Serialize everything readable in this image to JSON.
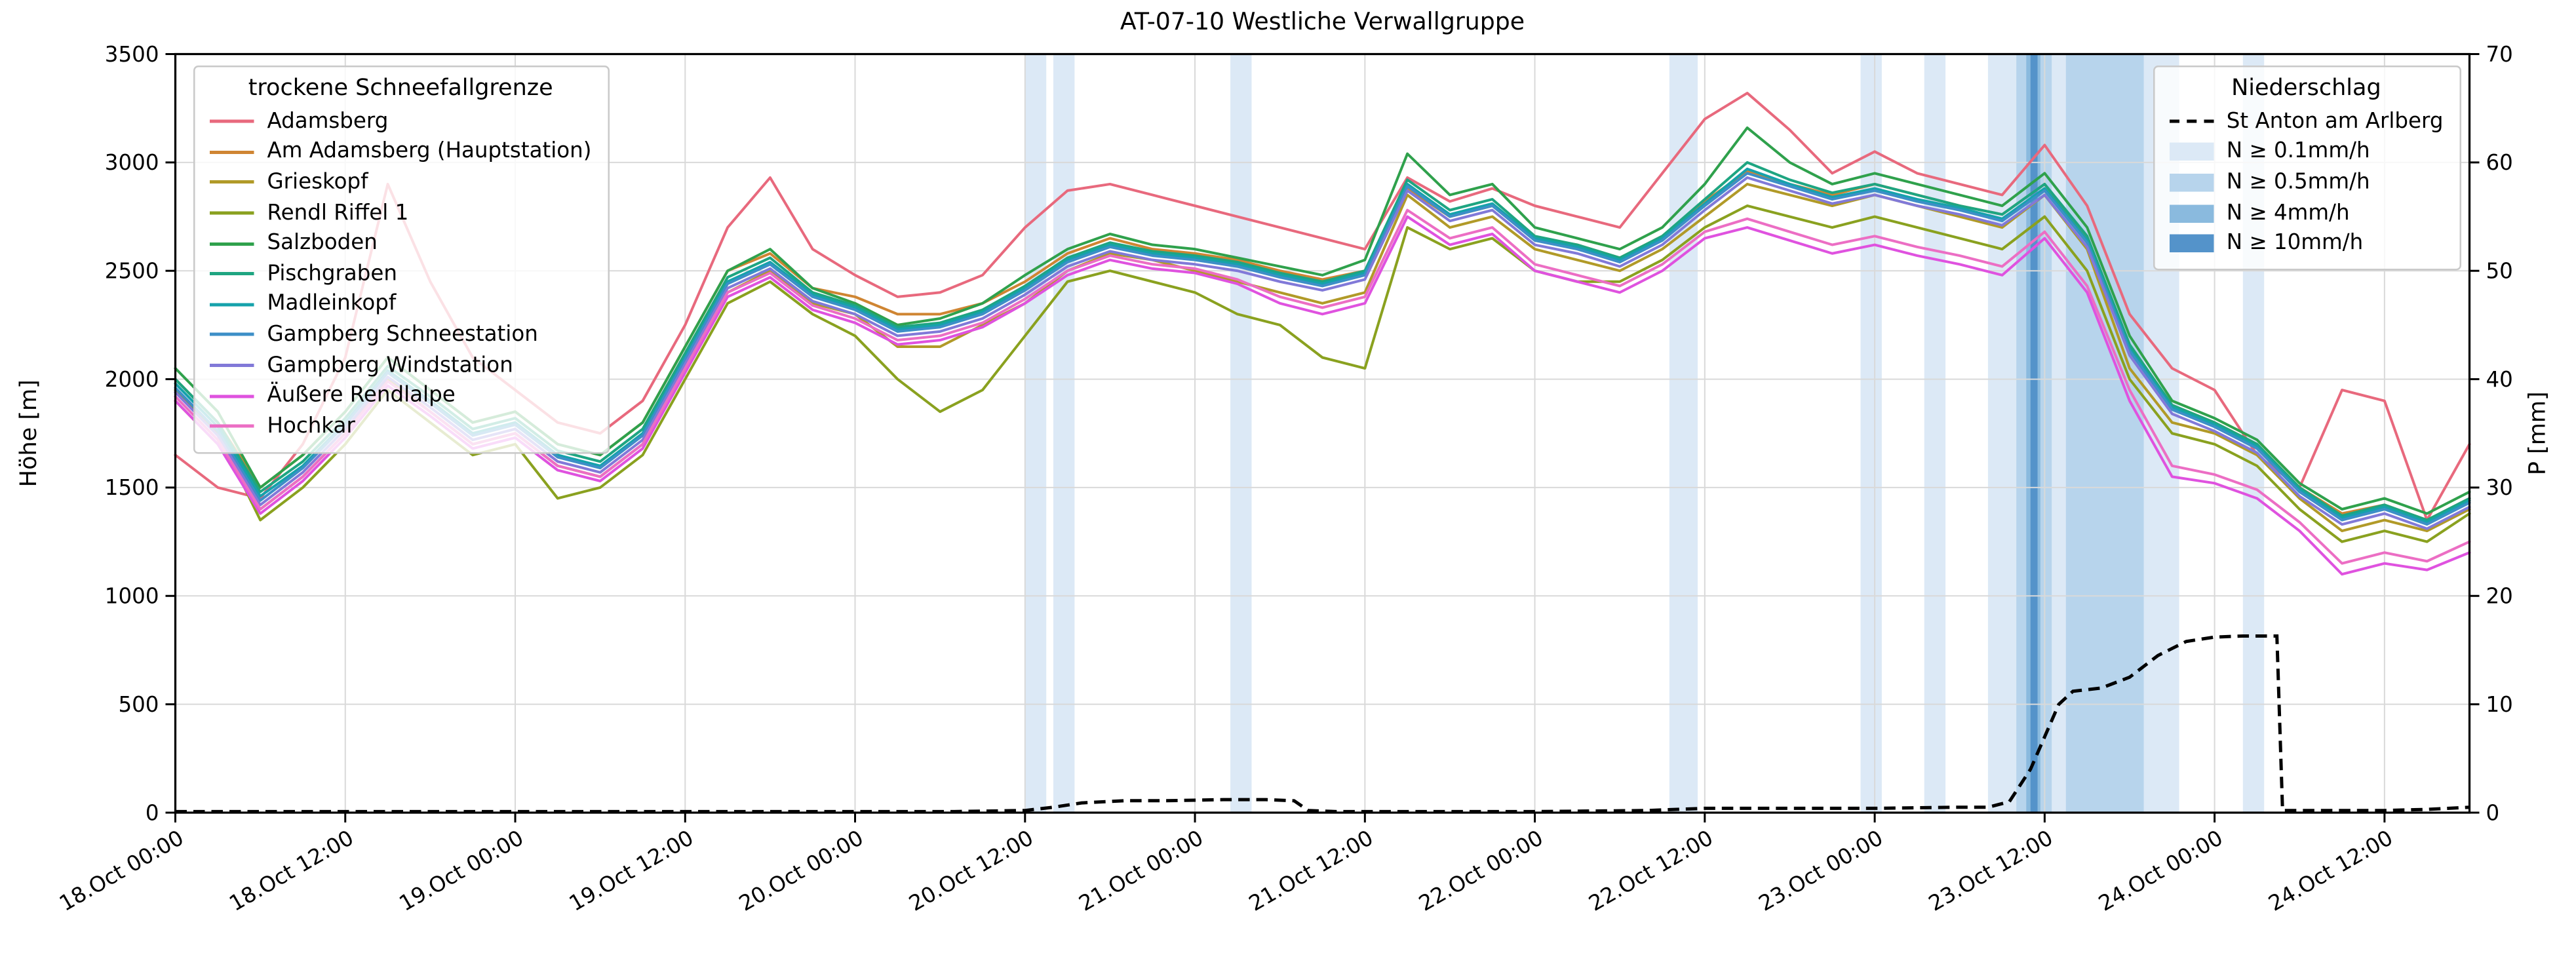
{
  "title": "AT-07-10 Westliche Verwallgruppe",
  "axes": {
    "y_left_label": "Höhe [m]",
    "y_right_label": "P [mm]",
    "y_left_ticks": [
      0,
      500,
      1000,
      1500,
      2000,
      2500,
      3000,
      3500
    ],
    "y_right_ticks": [
      0,
      10,
      20,
      30,
      40,
      50,
      60,
      70
    ],
    "x_tick_labels": [
      "18.Oct 00:00",
      "18.Oct 12:00",
      "19.Oct 00:00",
      "19.Oct 12:00",
      "20.Oct 00:00",
      "20.Oct 12:00",
      "21.Oct 00:00",
      "21.Oct 12:00",
      "22.Oct 00:00",
      "22.Oct 12:00",
      "23.Oct 00:00",
      "23.Oct 12:00",
      "24.Oct 00:00",
      "24.Oct 12:00"
    ]
  },
  "legend_left": {
    "title": "trockene Schneefallgrenze"
  },
  "legend_right": {
    "title": "Niederschlag",
    "line_label": "St Anton am Arlberg"
  },
  "chart_data": {
    "type": "line",
    "title": "AT-07-10 Westliche Verwallgruppe",
    "xlabel": "",
    "ylabel_left": "Höhe [m]",
    "ylabel_right": "P [mm]",
    "ylim_left": [
      0,
      3500
    ],
    "ylim_right": [
      0,
      70
    ],
    "x_range_hours": [
      0,
      162
    ],
    "x_axis_start": "18.Oct 00:00",
    "x_tick_hours": [
      0,
      12,
      24,
      36,
      48,
      60,
      72,
      84,
      96,
      108,
      120,
      132,
      144,
      156
    ],
    "grid": true,
    "legend_positions": {
      "snowline": "upper left",
      "precip": "upper right"
    },
    "x_hours": [
      0,
      3,
      6,
      9,
      12,
      15,
      18,
      21,
      24,
      27,
      30,
      33,
      36,
      39,
      42,
      45,
      48,
      51,
      54,
      57,
      60,
      63,
      66,
      69,
      72,
      75,
      78,
      81,
      84,
      87,
      90,
      93,
      96,
      99,
      102,
      105,
      108,
      111,
      114,
      117,
      120,
      123,
      126,
      129,
      132,
      135,
      138,
      141,
      144,
      147,
      150,
      153,
      156,
      159,
      162
    ],
    "series": [
      {
        "name": "Adamsberg",
        "color": "#e8697d",
        "values": [
          1650,
          1500,
          1450,
          1700,
          2100,
          2900,
          2450,
          2100,
          1950,
          1800,
          1750,
          1900,
          2250,
          2700,
          2930,
          2600,
          2480,
          2380,
          2400,
          2480,
          2700,
          2870,
          2900,
          2850,
          2800,
          2750,
          2700,
          2650,
          2600,
          2930,
          2820,
          2880,
          2800,
          2750,
          2700,
          2950,
          3200,
          3320,
          3150,
          2950,
          3050,
          2950,
          2900,
          2850,
          3080,
          2800,
          2300,
          2050,
          1950,
          1650,
          1500,
          1950,
          1900,
          1350,
          1700
        ]
      },
      {
        "name": "Am Adamsberg (Hauptstation)",
        "color": "#cf8532",
        "values": [
          2000,
          1800,
          1500,
          1650,
          1850,
          2100,
          1950,
          1800,
          1850,
          1700,
          1650,
          1800,
          2150,
          2500,
          2580,
          2420,
          2380,
          2300,
          2300,
          2350,
          2450,
          2580,
          2650,
          2600,
          2580,
          2550,
          2500,
          2460,
          2500,
          2880,
          2750,
          2800,
          2650,
          2620,
          2560,
          2660,
          2820,
          2960,
          2900,
          2850,
          2900,
          2850,
          2800,
          2760,
          2900,
          2650,
          2150,
          1880,
          1800,
          1700,
          1500,
          1380,
          1420,
          1350,
          1450
        ]
      },
      {
        "name": "Grieskopf",
        "color": "#b19a28",
        "values": [
          1900,
          1700,
          1400,
          1550,
          1750,
          2000,
          1850,
          1700,
          1750,
          1600,
          1550,
          1700,
          2050,
          2400,
          2500,
          2350,
          2300,
          2150,
          2150,
          2250,
          2350,
          2500,
          2580,
          2550,
          2500,
          2450,
          2400,
          2350,
          2400,
          2850,
          2700,
          2750,
          2600,
          2550,
          2500,
          2600,
          2750,
          2900,
          2850,
          2800,
          2850,
          2800,
          2750,
          2700,
          2850,
          2600,
          2050,
          1800,
          1750,
          1650,
          1450,
          1300,
          1350,
          1300,
          1400
        ]
      },
      {
        "name": "Rendl Riffel 1",
        "color": "#8aa11f",
        "values": [
          1950,
          1750,
          1350,
          1500,
          1700,
          1950,
          1800,
          1650,
          1700,
          1450,
          1500,
          1650,
          2000,
          2350,
          2450,
          2300,
          2200,
          2000,
          1850,
          1950,
          2200,
          2450,
          2500,
          2450,
          2400,
          2300,
          2250,
          2100,
          2050,
          2700,
          2600,
          2650,
          2500,
          2450,
          2450,
          2550,
          2700,
          2800,
          2750,
          2700,
          2750,
          2700,
          2650,
          2600,
          2750,
          2500,
          2000,
          1750,
          1700,
          1600,
          1400,
          1250,
          1300,
          1250,
          1380
        ]
      },
      {
        "name": "Salzboden",
        "color": "#2fa14c",
        "values": [
          2050,
          1850,
          1500,
          1650,
          1850,
          2100,
          1950,
          1800,
          1850,
          1700,
          1650,
          1800,
          2150,
          2500,
          2600,
          2420,
          2350,
          2250,
          2280,
          2350,
          2480,
          2600,
          2670,
          2620,
          2600,
          2560,
          2520,
          2480,
          2550,
          3040,
          2850,
          2900,
          2700,
          2650,
          2600,
          2700,
          2900,
          3160,
          3000,
          2900,
          2950,
          2900,
          2850,
          2800,
          2950,
          2700,
          2200,
          1900,
          1820,
          1720,
          1520,
          1400,
          1450,
          1380,
          1480
        ]
      },
      {
        "name": "Pischgraben",
        "color": "#1ea581",
        "values": [
          2000,
          1800,
          1480,
          1620,
          1820,
          2060,
          1920,
          1770,
          1820,
          1670,
          1620,
          1770,
          2120,
          2470,
          2560,
          2400,
          2340,
          2240,
          2260,
          2320,
          2430,
          2560,
          2630,
          2590,
          2570,
          2540,
          2490,
          2450,
          2500,
          2920,
          2780,
          2830,
          2660,
          2620,
          2560,
          2660,
          2830,
          3000,
          2920,
          2860,
          2900,
          2850,
          2800,
          2760,
          2900,
          2660,
          2160,
          1880,
          1800,
          1700,
          1500,
          1370,
          1420,
          1350,
          1450
        ]
      },
      {
        "name": "Madleinkopf",
        "color": "#16a2ab",
        "values": [
          1980,
          1780,
          1460,
          1600,
          1800,
          2040,
          1900,
          1750,
          1800,
          1650,
          1600,
          1750,
          2100,
          2450,
          2540,
          2390,
          2330,
          2230,
          2250,
          2310,
          2420,
          2550,
          2620,
          2580,
          2560,
          2530,
          2480,
          2440,
          2490,
          2900,
          2760,
          2810,
          2650,
          2610,
          2550,
          2650,
          2810,
          2970,
          2900,
          2840,
          2880,
          2830,
          2790,
          2740,
          2880,
          2640,
          2140,
          1870,
          1790,
          1690,
          1490,
          1360,
          1410,
          1340,
          1440
        ]
      },
      {
        "name": "Gampberg Schneestation",
        "color": "#3d8fc7",
        "values": [
          1960,
          1760,
          1440,
          1590,
          1790,
          2030,
          1890,
          1740,
          1790,
          1640,
          1590,
          1740,
          2090,
          2440,
          2530,
          2380,
          2320,
          2220,
          2240,
          2300,
          2410,
          2540,
          2610,
          2570,
          2550,
          2520,
          2470,
          2430,
          2480,
          2890,
          2750,
          2800,
          2640,
          2600,
          2540,
          2640,
          2800,
          2950,
          2890,
          2830,
          2870,
          2820,
          2780,
          2730,
          2870,
          2630,
          2130,
          1860,
          1780,
          1680,
          1480,
          1350,
          1400,
          1330,
          1430
        ]
      },
      {
        "name": "Gampberg Windstation",
        "color": "#8179d8",
        "values": [
          1940,
          1740,
          1420,
          1570,
          1770,
          2010,
          1870,
          1720,
          1770,
          1620,
          1570,
          1720,
          2070,
          2420,
          2510,
          2360,
          2300,
          2200,
          2220,
          2280,
          2390,
          2520,
          2590,
          2550,
          2530,
          2500,
          2450,
          2410,
          2460,
          2870,
          2730,
          2780,
          2620,
          2580,
          2520,
          2620,
          2780,
          2930,
          2870,
          2810,
          2850,
          2800,
          2760,
          2710,
          2850,
          2610,
          2110,
          1840,
          1760,
          1660,
          1460,
          1330,
          1380,
          1310,
          1410
        ]
      },
      {
        "name": "Äußere Rendlalpe",
        "color": "#df52df",
        "values": [
          1900,
          1700,
          1380,
          1530,
          1730,
          1970,
          1830,
          1680,
          1730,
          1580,
          1530,
          1680,
          2030,
          2380,
          2470,
          2320,
          2260,
          2160,
          2180,
          2240,
          2350,
          2480,
          2550,
          2510,
          2490,
          2440,
          2350,
          2300,
          2350,
          2750,
          2620,
          2670,
          2500,
          2450,
          2400,
          2500,
          2650,
          2700,
          2640,
          2580,
          2620,
          2570,
          2530,
          2480,
          2650,
          2400,
          1900,
          1550,
          1520,
          1450,
          1300,
          1100,
          1150,
          1120,
          1200
        ]
      },
      {
        "name": "Hochkar",
        "color": "#ec6ec4",
        "values": [
          1920,
          1720,
          1400,
          1550,
          1750,
          1990,
          1850,
          1700,
          1750,
          1600,
          1550,
          1700,
          2050,
          2400,
          2490,
          2340,
          2280,
          2180,
          2200,
          2260,
          2370,
          2500,
          2570,
          2530,
          2510,
          2460,
          2380,
          2330,
          2380,
          2780,
          2650,
          2700,
          2530,
          2480,
          2430,
          2530,
          2680,
          2740,
          2680,
          2620,
          2660,
          2610,
          2570,
          2520,
          2680,
          2430,
          1950,
          1600,
          1560,
          1490,
          1340,
          1150,
          1200,
          1160,
          1250
        ]
      }
    ],
    "precip_line": {
      "name": "St Anton am Arlberg",
      "color": "#000000",
      "style": "dashed",
      "x_hours": [
        0,
        55,
        60,
        62,
        64,
        67,
        70,
        74,
        77,
        79,
        80,
        82,
        96,
        104,
        108,
        116,
        120,
        126,
        128,
        129.5,
        131,
        132,
        133,
        134,
        136,
        138,
        140,
        142,
        144,
        146,
        148.4,
        148.8,
        152,
        156,
        159,
        162
      ],
      "values_mm": [
        0.1,
        0.1,
        0.2,
        0.5,
        0.9,
        1.1,
        1.1,
        1.2,
        1.2,
        1.1,
        0.2,
        0.1,
        0.1,
        0.2,
        0.4,
        0.4,
        0.4,
        0.5,
        0.5,
        1.0,
        4.0,
        7.0,
        10.0,
        11.2,
        11.5,
        12.5,
        14.5,
        15.8,
        16.2,
        16.3,
        16.3,
        0.2,
        0.2,
        0.2,
        0.3,
        0.5
      ]
    },
    "precip_levels": [
      {
        "label": "N ≥ 0.1mm/h",
        "color": "#dce9f6"
      },
      {
        "label": "N ≥ 0.5mm/h",
        "color": "#b7d4ec"
      },
      {
        "label": "N ≥ 4mm/h",
        "color": "#8abade"
      },
      {
        "label": "N ≥ 10mm/h",
        "color": "#5493ca"
      }
    ],
    "precip_bands": [
      {
        "from_hour": 60,
        "to_hour": 61.5,
        "level": 0
      },
      {
        "from_hour": 62,
        "to_hour": 63.5,
        "level": 0
      },
      {
        "from_hour": 74.5,
        "to_hour": 76,
        "level": 0
      },
      {
        "from_hour": 105.5,
        "to_hour": 107.5,
        "level": 0
      },
      {
        "from_hour": 119,
        "to_hour": 120.5,
        "level": 0
      },
      {
        "from_hour": 123.5,
        "to_hour": 125,
        "level": 0
      },
      {
        "from_hour": 128,
        "to_hour": 141.5,
        "level": 0
      },
      {
        "from_hour": 130,
        "to_hour": 132.5,
        "level": 1
      },
      {
        "from_hour": 130.7,
        "to_hour": 131.7,
        "level": 2
      },
      {
        "from_hour": 131,
        "to_hour": 131.5,
        "level": 3
      },
      {
        "from_hour": 133.5,
        "to_hour": 139,
        "level": 1
      },
      {
        "from_hour": 146,
        "to_hour": 147.5,
        "level": 0
      }
    ]
  }
}
